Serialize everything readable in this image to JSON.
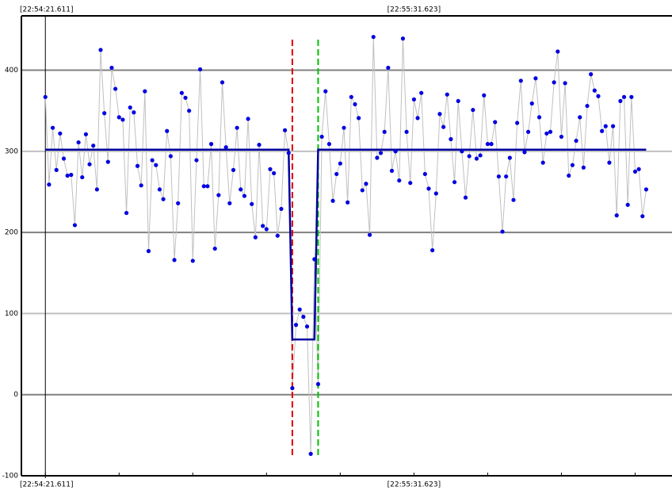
{
  "chart_data": {
    "type": "line",
    "xlim": [
      -6.5,
      170
    ],
    "ylim": [
      -100,
      467
    ],
    "yticks": [
      -100,
      0,
      100,
      200,
      300,
      400
    ],
    "xticks": [
      {
        "value": 0,
        "label": "[22:54:21.611]"
      },
      {
        "value": 100,
        "label": "[22:55:31.623]"
      }
    ],
    "xminor": [
      0,
      20,
      40,
      60,
      80,
      100,
      120,
      140,
      160
    ],
    "grid": true,
    "series": [
      {
        "color": "#0000e0",
        "values": [
          367,
          259,
          329,
          277,
          322,
          291,
          270,
          271,
          209,
          311,
          268,
          321,
          284,
          307,
          253,
          425,
          347,
          287,
          403,
          377,
          342,
          339,
          224,
          354,
          348,
          282,
          258,
          374,
          177,
          289,
          283,
          253,
          241,
          325,
          294,
          166,
          236,
          372,
          366,
          350,
          165,
          289,
          401,
          257,
          257,
          309,
          180,
          246,
          385,
          305,
          236,
          277,
          329,
          253,
          245,
          340,
          235,
          194,
          308,
          208,
          204,
          278,
          273,
          196,
          229,
          326,
          298,
          8,
          86,
          105,
          96,
          84,
          -73,
          167,
          13,
          318,
          374,
          309,
          239,
          272,
          285,
          329,
          237,
          367,
          358,
          341,
          252,
          260,
          197,
          441,
          292,
          298,
          324,
          403,
          276,
          300,
          264,
          439,
          324,
          261,
          364,
          341,
          372,
          272,
          254,
          178,
          248,
          346,
          330,
          370,
          315,
          262,
          362,
          300,
          243,
          294,
          351,
          291,
          295,
          369,
          309,
          309,
          336,
          269,
          201,
          269,
          292,
          240,
          335,
          387,
          299,
          324,
          359,
          390,
          342,
          286,
          322,
          324,
          385,
          423,
          318,
          384,
          270,
          283,
          313,
          342,
          280,
          356,
          395,
          375,
          368,
          325,
          331,
          286,
          331,
          221,
          362,
          367,
          234,
          367,
          275,
          278,
          220,
          253
        ]
      },
      {
        "color": "#0000a0",
        "x": [
          0,
          66,
          67,
          73,
          74,
          163
        ],
        "values": [
          302,
          302,
          68,
          68,
          302,
          302
        ]
      }
    ],
    "markers": [
      {
        "x": 67,
        "color": "#e00000"
      },
      {
        "x": 74,
        "color": "#00c000"
      }
    ]
  }
}
